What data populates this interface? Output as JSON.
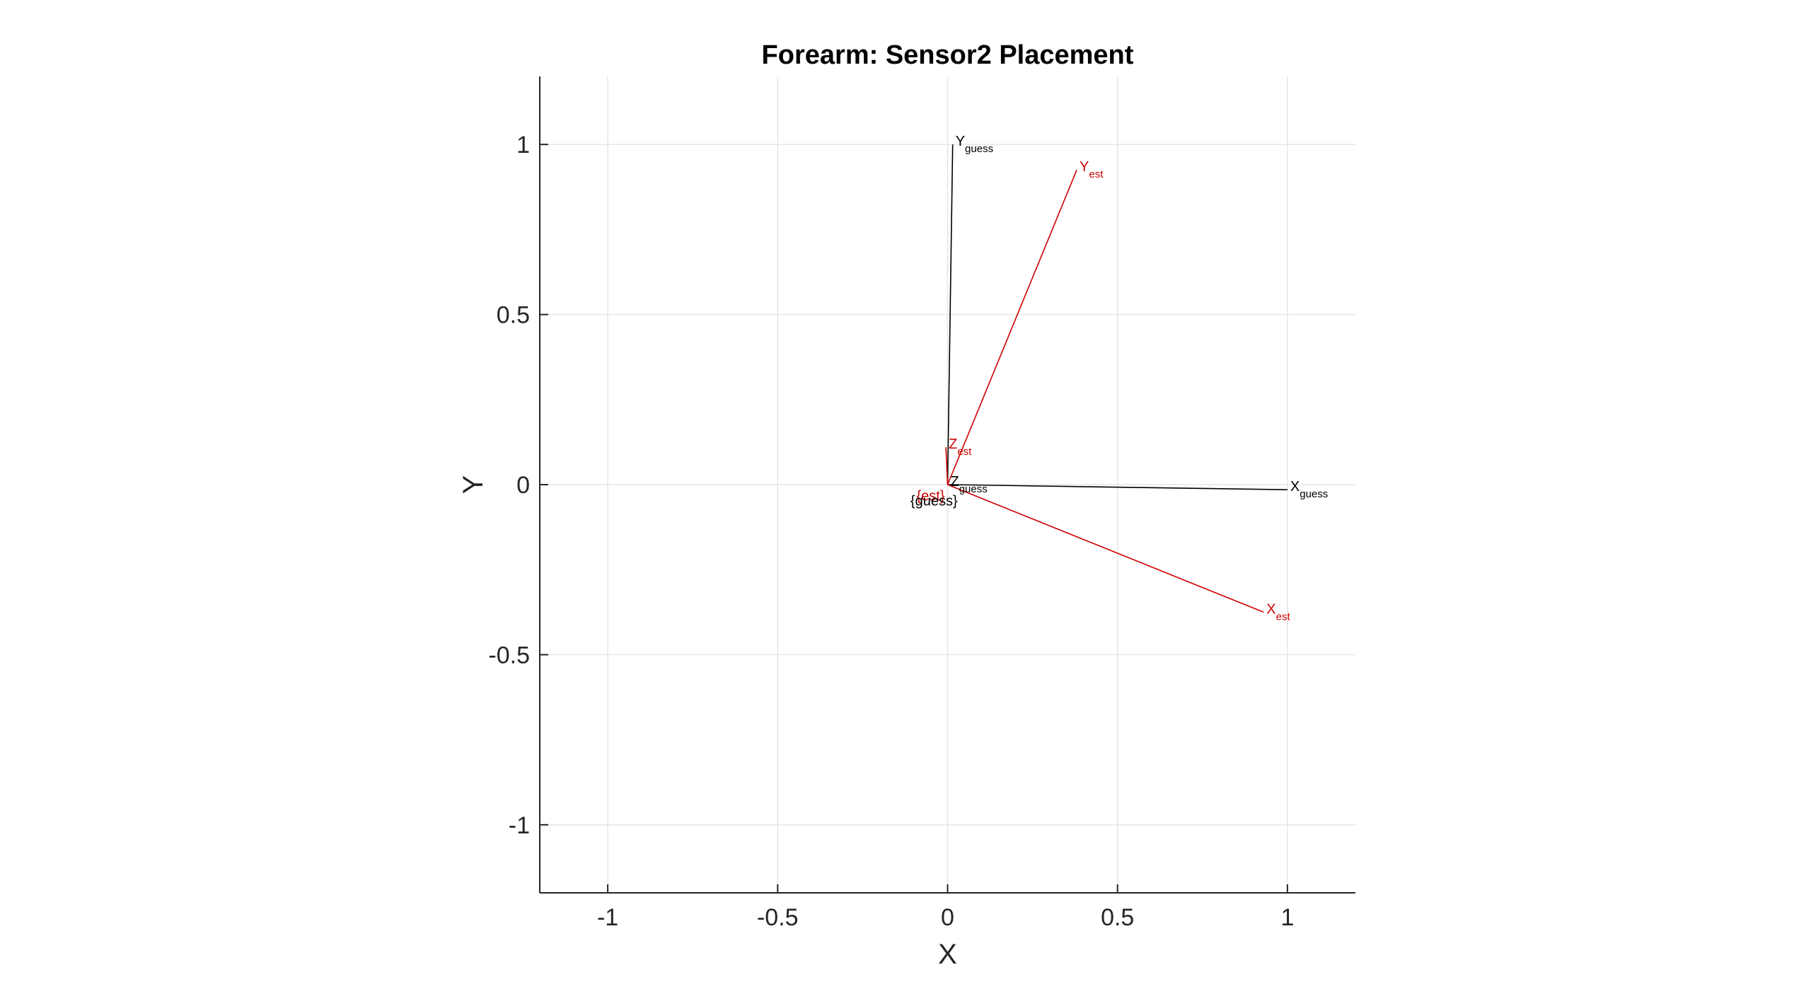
{
  "chart_data": {
    "type": "line",
    "title": "Forearm: Sensor2 Placement",
    "xlabel": "X",
    "ylabel": "Y",
    "xlim": [
      -1.2,
      1.2
    ],
    "ylim": [
      -1.2,
      1.2
    ],
    "xticks": [
      -1,
      -0.5,
      0,
      0.5,
      1
    ],
    "yticks": [
      -1,
      -0.5,
      0,
      0.5,
      1
    ],
    "xtick_labels": [
      "-1",
      "-0.5",
      "0",
      "0.5",
      "1"
    ],
    "ytick_labels": [
      "-1",
      "-0.5",
      "0",
      "0.5",
      "1"
    ],
    "grid": true,
    "vectors": [
      {
        "frame": "guess",
        "axis": "X",
        "base": "X",
        "sub": "guess",
        "from": [
          0,
          0
        ],
        "to": [
          1.0,
          -0.015
        ],
        "color": "#000000"
      },
      {
        "frame": "guess",
        "axis": "Y",
        "base": "Y",
        "sub": "guess",
        "from": [
          0,
          0
        ],
        "to": [
          0.015,
          1.0
        ],
        "color": "#000000"
      },
      {
        "frame": "guess",
        "axis": "Z",
        "base": "Z",
        "sub": "guess",
        "from": [
          0,
          0
        ],
        "to": [
          0.0,
          0.0
        ],
        "color": "#000000"
      },
      {
        "frame": "est",
        "axis": "X",
        "base": "X",
        "sub": "est",
        "from": [
          0,
          0
        ],
        "to": [
          0.93,
          -0.375
        ],
        "color": "#cc0000"
      },
      {
        "frame": "est",
        "axis": "Y",
        "base": "Y",
        "sub": "est",
        "from": [
          0,
          0
        ],
        "to": [
          0.38,
          0.925
        ],
        "color": "#cc0000"
      },
      {
        "frame": "est",
        "axis": "Z",
        "base": "Z",
        "sub": "est",
        "from": [
          0,
          0
        ],
        "to": [
          -0.005,
          0.11
        ],
        "color": "#cc0000"
      }
    ],
    "frame_labels": [
      {
        "text": "{est}",
        "x": -0.05,
        "y": -0.03,
        "color": "#cc0000"
      },
      {
        "text": "{guess}",
        "x": -0.04,
        "y": -0.045,
        "color": "#000000"
      }
    ]
  }
}
